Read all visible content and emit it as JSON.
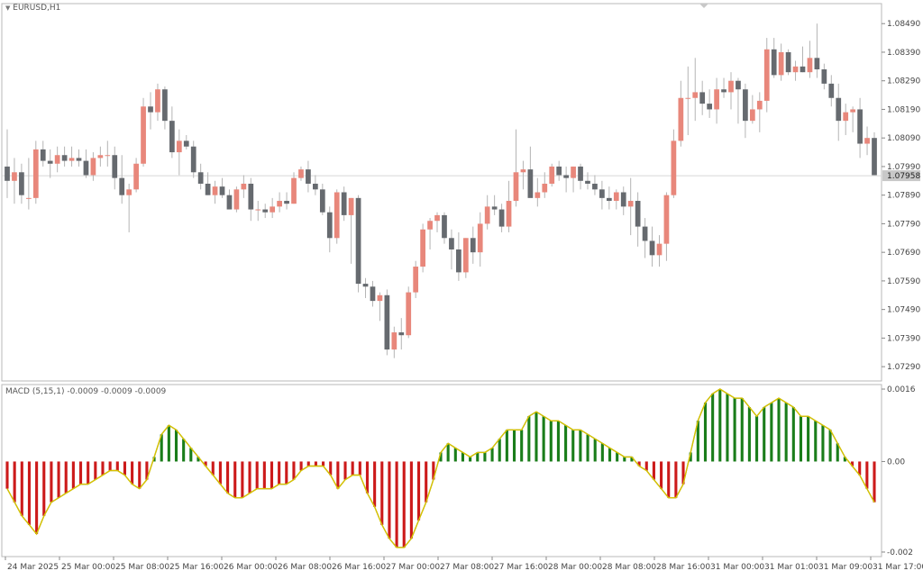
{
  "main_title": "EURUSD,H1",
  "indicator_label": "MACD (5,15,1) -0.0009 -0.0009 -0.0009",
  "current_price_label": "1.07958",
  "colors": {
    "bull": "#e8877b",
    "bear": "#666a6f",
    "wick": "#b4b4b4",
    "hist_pos": "#1a7d1a",
    "hist_neg": "#cc1a1a",
    "signal_line": "#d9c200",
    "macd_line": "#2e7d32",
    "grid_frame": "#b8b8b8",
    "price_line": "#d8d8d8"
  },
  "chart_data": [
    {
      "type": "candlestick",
      "symbol": "EURUSD",
      "timeframe": "H1",
      "ylim": [
        1.0724,
        1.0856
      ],
      "y_ticks": [
        "1.07290",
        "1.07390",
        "1.07490",
        "1.07590",
        "1.07690",
        "1.07790",
        "1.07890",
        "1.07990",
        "1.08090",
        "1.08190",
        "1.08290",
        "1.08390",
        "1.08490"
      ],
      "x_labels": [
        "24 Mar 2025",
        "25 Mar 00:00",
        "25 Mar 08:00",
        "25 Mar 16:00",
        "26 Mar 00:00",
        "26 Mar 08:00",
        "26 Mar 16:00",
        "27 Mar 00:00",
        "27 Mar 08:00",
        "27 Mar 16:00",
        "28 Mar 00:00",
        "28 Mar 08:00",
        "28 Mar 16:00",
        "31 Mar 00:00",
        "31 Mar 01:00",
        "31 Mar 09:00",
        "31 Mar 17:00"
      ],
      "current_price": 1.07958,
      "candles": [
        {
          "o": 1.0799,
          "h": 1.0812,
          "l": 1.0788,
          "c": 1.0794
        },
        {
          "o": 1.0794,
          "h": 1.0802,
          "l": 1.0786,
          "c": 1.0797
        },
        {
          "o": 1.0797,
          "h": 1.08,
          "l": 1.0786,
          "c": 1.0789
        },
        {
          "o": 1.0788,
          "h": 1.0802,
          "l": 1.0784,
          "c": 1.0788
        },
        {
          "o": 1.0788,
          "h": 1.0808,
          "l": 1.0786,
          "c": 1.0805
        },
        {
          "o": 1.0805,
          "h": 1.0808,
          "l": 1.0799,
          "c": 1.0801
        },
        {
          "o": 1.0801,
          "h": 1.0805,
          "l": 1.0795,
          "c": 1.08
        },
        {
          "o": 1.08,
          "h": 1.0806,
          "l": 1.0797,
          "c": 1.0803
        },
        {
          "o": 1.0803,
          "h": 1.0806,
          "l": 1.0799,
          "c": 1.0801
        },
        {
          "o": 1.0801,
          "h": 1.0806,
          "l": 1.0799,
          "c": 1.0802
        },
        {
          "o": 1.0802,
          "h": 1.0805,
          "l": 1.0799,
          "c": 1.0801
        },
        {
          "o": 1.0801,
          "h": 1.0805,
          "l": 1.0795,
          "c": 1.0796
        },
        {
          "o": 1.0796,
          "h": 1.0804,
          "l": 1.0794,
          "c": 1.0802
        },
        {
          "o": 1.0802,
          "h": 1.0806,
          "l": 1.0799,
          "c": 1.0803
        },
        {
          "o": 1.0803,
          "h": 1.0808,
          "l": 1.0799,
          "c": 1.0803
        },
        {
          "o": 1.0803,
          "h": 1.0806,
          "l": 1.0791,
          "c": 1.0795
        },
        {
          "o": 1.0795,
          "h": 1.0803,
          "l": 1.0786,
          "c": 1.0789
        },
        {
          "o": 1.0789,
          "h": 1.0793,
          "l": 1.0776,
          "c": 1.0791
        },
        {
          "o": 1.0791,
          "h": 1.0802,
          "l": 1.079,
          "c": 1.08
        },
        {
          "o": 1.08,
          "h": 1.0823,
          "l": 1.0799,
          "c": 1.082
        },
        {
          "o": 1.082,
          "h": 1.0825,
          "l": 1.0812,
          "c": 1.0818
        },
        {
          "o": 1.0818,
          "h": 1.0828,
          "l": 1.0815,
          "c": 1.0826
        },
        {
          "o": 1.0826,
          "h": 1.0827,
          "l": 1.0812,
          "c": 1.0815
        },
        {
          "o": 1.0815,
          "h": 1.082,
          "l": 1.0802,
          "c": 1.0804
        },
        {
          "o": 1.0804,
          "h": 1.0812,
          "l": 1.0796,
          "c": 1.0808
        },
        {
          "o": 1.0808,
          "h": 1.081,
          "l": 1.0805,
          "c": 1.0806
        },
        {
          "o": 1.0806,
          "h": 1.0808,
          "l": 1.0795,
          "c": 1.0797
        },
        {
          "o": 1.0797,
          "h": 1.08,
          "l": 1.0791,
          "c": 1.0793
        },
        {
          "o": 1.0793,
          "h": 1.0797,
          "l": 1.0789,
          "c": 1.0789
        },
        {
          "o": 1.0789,
          "h": 1.0794,
          "l": 1.0786,
          "c": 1.0792
        },
        {
          "o": 1.0792,
          "h": 1.0795,
          "l": 1.0788,
          "c": 1.0789
        },
        {
          "o": 1.0789,
          "h": 1.0791,
          "l": 1.0785,
          "c": 1.0784
        },
        {
          "o": 1.0784,
          "h": 1.0792,
          "l": 1.0783,
          "c": 1.0791
        },
        {
          "o": 1.0791,
          "h": 1.0796,
          "l": 1.0788,
          "c": 1.0793
        },
        {
          "o": 1.0793,
          "h": 1.0795,
          "l": 1.078,
          "c": 1.0784
        },
        {
          "o": 1.0784,
          "h": 1.0787,
          "l": 1.078,
          "c": 1.0784
        },
        {
          "o": 1.0784,
          "h": 1.0786,
          "l": 1.0781,
          "c": 1.0783
        },
        {
          "o": 1.0783,
          "h": 1.0788,
          "l": 1.0781,
          "c": 1.0785
        },
        {
          "o": 1.0785,
          "h": 1.079,
          "l": 1.0783,
          "c": 1.0787
        },
        {
          "o": 1.0787,
          "h": 1.079,
          "l": 1.0784,
          "c": 1.0786
        },
        {
          "o": 1.0786,
          "h": 1.0797,
          "l": 1.0786,
          "c": 1.0795
        },
        {
          "o": 1.0795,
          "h": 1.0799,
          "l": 1.0794,
          "c": 1.0798
        },
        {
          "o": 1.0798,
          "h": 1.0801,
          "l": 1.079,
          "c": 1.0793
        },
        {
          "o": 1.0793,
          "h": 1.0796,
          "l": 1.0789,
          "c": 1.0791
        },
        {
          "o": 1.0791,
          "h": 1.0793,
          "l": 1.0782,
          "c": 1.0783
        },
        {
          "o": 1.0783,
          "h": 1.0785,
          "l": 1.0769,
          "c": 1.0774
        },
        {
          "o": 1.0774,
          "h": 1.0791,
          "l": 1.0772,
          "c": 1.079
        },
        {
          "o": 1.079,
          "h": 1.0792,
          "l": 1.078,
          "c": 1.0782
        },
        {
          "o": 1.0782,
          "h": 1.0788,
          "l": 1.0765,
          "c": 1.0788
        },
        {
          "o": 1.0788,
          "h": 1.0789,
          "l": 1.0755,
          "c": 1.0758
        },
        {
          "o": 1.0758,
          "h": 1.076,
          "l": 1.0753,
          "c": 1.0757
        },
        {
          "o": 1.0757,
          "h": 1.0759,
          "l": 1.075,
          "c": 1.0752
        },
        {
          "o": 1.0752,
          "h": 1.0755,
          "l": 1.0745,
          "c": 1.0754
        },
        {
          "o": 1.0754,
          "h": 1.0756,
          "l": 1.0733,
          "c": 1.0735
        },
        {
          "o": 1.0735,
          "h": 1.0743,
          "l": 1.0732,
          "c": 1.0741
        },
        {
          "o": 1.0741,
          "h": 1.0746,
          "l": 1.0735,
          "c": 1.074
        },
        {
          "o": 1.074,
          "h": 1.0757,
          "l": 1.0739,
          "c": 1.0755
        },
        {
          "o": 1.0755,
          "h": 1.0766,
          "l": 1.0753,
          "c": 1.0764
        },
        {
          "o": 1.0764,
          "h": 1.0779,
          "l": 1.0762,
          "c": 1.0777
        },
        {
          "o": 1.0777,
          "h": 1.0781,
          "l": 1.077,
          "c": 1.078
        },
        {
          "o": 1.078,
          "h": 1.0783,
          "l": 1.0776,
          "c": 1.0782
        },
        {
          "o": 1.0782,
          "h": 1.0783,
          "l": 1.0772,
          "c": 1.0774
        },
        {
          "o": 1.0774,
          "h": 1.0777,
          "l": 1.0763,
          "c": 1.077
        },
        {
          "o": 1.077,
          "h": 1.0776,
          "l": 1.0759,
          "c": 1.0762
        },
        {
          "o": 1.0762,
          "h": 1.0774,
          "l": 1.076,
          "c": 1.0774
        },
        {
          "o": 1.0774,
          "h": 1.0778,
          "l": 1.0765,
          "c": 1.0769
        },
        {
          "o": 1.0769,
          "h": 1.0783,
          "l": 1.0764,
          "c": 1.0779
        },
        {
          "o": 1.0779,
          "h": 1.0789,
          "l": 1.0777,
          "c": 1.0785
        },
        {
          "o": 1.0785,
          "h": 1.0789,
          "l": 1.0782,
          "c": 1.0784
        },
        {
          "o": 1.0784,
          "h": 1.0786,
          "l": 1.0776,
          "c": 1.0778
        },
        {
          "o": 1.0778,
          "h": 1.0794,
          "l": 1.0776,
          "c": 1.0787
        },
        {
          "o": 1.0787,
          "h": 1.0812,
          "l": 1.0785,
          "c": 1.0797
        },
        {
          "o": 1.0797,
          "h": 1.0801,
          "l": 1.0791,
          "c": 1.0798
        },
        {
          "o": 1.0798,
          "h": 1.0806,
          "l": 1.0789,
          "c": 1.0788
        },
        {
          "o": 1.0788,
          "h": 1.0795,
          "l": 1.0785,
          "c": 1.079
        },
        {
          "o": 1.079,
          "h": 1.0797,
          "l": 1.0788,
          "c": 1.0793
        },
        {
          "o": 1.0793,
          "h": 1.08,
          "l": 1.0792,
          "c": 1.0799
        },
        {
          "o": 1.0799,
          "h": 1.0801,
          "l": 1.0794,
          "c": 1.0796
        },
        {
          "o": 1.0796,
          "h": 1.0799,
          "l": 1.079,
          "c": 1.0795
        },
        {
          "o": 1.0795,
          "h": 1.0799,
          "l": 1.079,
          "c": 1.0799
        },
        {
          "o": 1.0799,
          "h": 1.08,
          "l": 1.0791,
          "c": 1.0794
        },
        {
          "o": 1.0794,
          "h": 1.0797,
          "l": 1.0791,
          "c": 1.0793
        },
        {
          "o": 1.0793,
          "h": 1.0796,
          "l": 1.0789,
          "c": 1.0791
        },
        {
          "o": 1.0791,
          "h": 1.0794,
          "l": 1.0784,
          "c": 1.0788
        },
        {
          "o": 1.0788,
          "h": 1.0792,
          "l": 1.0784,
          "c": 1.0787
        },
        {
          "o": 1.0787,
          "h": 1.0791,
          "l": 1.0784,
          "c": 1.079
        },
        {
          "o": 1.079,
          "h": 1.0792,
          "l": 1.0782,
          "c": 1.0785
        },
        {
          "o": 1.0785,
          "h": 1.0795,
          "l": 1.0775,
          "c": 1.0787
        },
        {
          "o": 1.0787,
          "h": 1.079,
          "l": 1.0771,
          "c": 1.0778
        },
        {
          "o": 1.0778,
          "h": 1.0781,
          "l": 1.0767,
          "c": 1.0773
        },
        {
          "o": 1.0773,
          "h": 1.0778,
          "l": 1.0764,
          "c": 1.0768
        },
        {
          "o": 1.0768,
          "h": 1.0775,
          "l": 1.0764,
          "c": 1.0772
        },
        {
          "o": 1.0772,
          "h": 1.079,
          "l": 1.0766,
          "c": 1.0789
        },
        {
          "o": 1.0789,
          "h": 1.0812,
          "l": 1.0788,
          "c": 1.0808
        },
        {
          "o": 1.0808,
          "h": 1.0829,
          "l": 1.0806,
          "c": 1.0823
        },
        {
          "o": 1.0823,
          "h": 1.0834,
          "l": 1.081,
          "c": 1.0823
        },
        {
          "o": 1.0823,
          "h": 1.0837,
          "l": 1.0815,
          "c": 1.0825
        },
        {
          "o": 1.0825,
          "h": 1.0829,
          "l": 1.0817,
          "c": 1.0821
        },
        {
          "o": 1.0821,
          "h": 1.0826,
          "l": 1.0816,
          "c": 1.0819
        },
        {
          "o": 1.0819,
          "h": 1.083,
          "l": 1.0814,
          "c": 1.0826
        },
        {
          "o": 1.0826,
          "h": 1.083,
          "l": 1.0823,
          "c": 1.0825
        },
        {
          "o": 1.0825,
          "h": 1.0832,
          "l": 1.0819,
          "c": 1.0829
        },
        {
          "o": 1.0829,
          "h": 1.083,
          "l": 1.0814,
          "c": 1.0826
        },
        {
          "o": 1.0826,
          "h": 1.0828,
          "l": 1.0809,
          "c": 1.0815
        },
        {
          "o": 1.0815,
          "h": 1.0824,
          "l": 1.0814,
          "c": 1.0819
        },
        {
          "o": 1.0819,
          "h": 1.0825,
          "l": 1.0811,
          "c": 1.0822
        },
        {
          "o": 1.0822,
          "h": 1.0844,
          "l": 1.0818,
          "c": 1.084
        },
        {
          "o": 1.084,
          "h": 1.0844,
          "l": 1.083,
          "c": 1.0831
        },
        {
          "o": 1.0831,
          "h": 1.0842,
          "l": 1.0829,
          "c": 1.0839
        },
        {
          "o": 1.0839,
          "h": 1.084,
          "l": 1.0831,
          "c": 1.0832
        },
        {
          "o": 1.0832,
          "h": 1.0836,
          "l": 1.0829,
          "c": 1.0834
        },
        {
          "o": 1.0834,
          "h": 1.0841,
          "l": 1.0832,
          "c": 1.0832
        },
        {
          "o": 1.0832,
          "h": 1.0843,
          "l": 1.083,
          "c": 1.0837
        },
        {
          "o": 1.0837,
          "h": 1.0849,
          "l": 1.083,
          "c": 1.0833
        },
        {
          "o": 1.0833,
          "h": 1.0835,
          "l": 1.0826,
          "c": 1.0828
        },
        {
          "o": 1.0828,
          "h": 1.0831,
          "l": 1.082,
          "c": 1.0823
        },
        {
          "o": 1.0823,
          "h": 1.0828,
          "l": 1.0808,
          "c": 1.0815
        },
        {
          "o": 1.0815,
          "h": 1.0821,
          "l": 1.081,
          "c": 1.0818
        },
        {
          "o": 1.0818,
          "h": 1.082,
          "l": 1.0811,
          "c": 1.0819
        },
        {
          "o": 1.0819,
          "h": 1.0823,
          "l": 1.0802,
          "c": 1.0807
        },
        {
          "o": 1.0807,
          "h": 1.0813,
          "l": 1.0803,
          "c": 1.0809
        },
        {
          "o": 1.0809,
          "h": 1.0811,
          "l": 1.0796,
          "c": 1.0796
        }
      ]
    },
    {
      "type": "macd_histogram",
      "label": "MACD (5,15,1) -0.0009 -0.0009 -0.0009",
      "ylim": [
        -0.0021,
        0.0017
      ],
      "y_ticks": [
        "0.0016",
        "0.00",
        "-0.002"
      ],
      "values": [
        -0.0006,
        -0.0009,
        -0.0012,
        -0.0014,
        -0.0016,
        -0.0012,
        -0.0009,
        -0.0008,
        -0.0007,
        -0.0006,
        -0.0005,
        -0.0005,
        -0.0004,
        -0.0003,
        -0.0002,
        -0.0002,
        -0.0003,
        -0.0005,
        -0.0006,
        -0.0004,
        0.0001,
        0.0006,
        0.0008,
        0.0007,
        0.0005,
        0.0003,
        0.0001,
        -0.0001,
        -0.0003,
        -0.0005,
        -0.0007,
        -0.0008,
        -0.0008,
        -0.0007,
        -0.0006,
        -0.0006,
        -0.0006,
        -0.0005,
        -0.0005,
        -0.0004,
        -0.0002,
        -0.0001,
        -0.0001,
        -0.0001,
        -0.0003,
        -0.0006,
        -0.0004,
        -0.0003,
        -0.0003,
        -0.0007,
        -0.001,
        -0.0014,
        -0.0017,
        -0.0019,
        -0.0019,
        -0.0017,
        -0.0013,
        -0.0009,
        -0.0004,
        0.0002,
        0.0004,
        0.0003,
        0.0002,
        0.0001,
        0.0002,
        0.0002,
        0.0003,
        0.0005,
        0.0007,
        0.0007,
        0.0007,
        0.001,
        0.0011,
        0.001,
        0.0009,
        0.0009,
        0.0008,
        0.0007,
        0.0007,
        0.0006,
        0.0005,
        0.0004,
        0.0003,
        0.0002,
        0.0001,
        0.0001,
        -0.0001,
        -0.0002,
        -0.0004,
        -0.0006,
        -0.0008,
        -0.0008,
        -0.0005,
        0.0002,
        0.0009,
        0.0013,
        0.0015,
        0.0016,
        0.0015,
        0.0014,
        0.0014,
        0.0012,
        0.001,
        0.0012,
        0.0013,
        0.0014,
        0.0013,
        0.0012,
        0.001,
        0.001,
        0.0009,
        0.0008,
        0.0007,
        0.0004,
        0.0001,
        -0.0001,
        -0.0003,
        -0.0006,
        -0.0009
      ]
    }
  ]
}
